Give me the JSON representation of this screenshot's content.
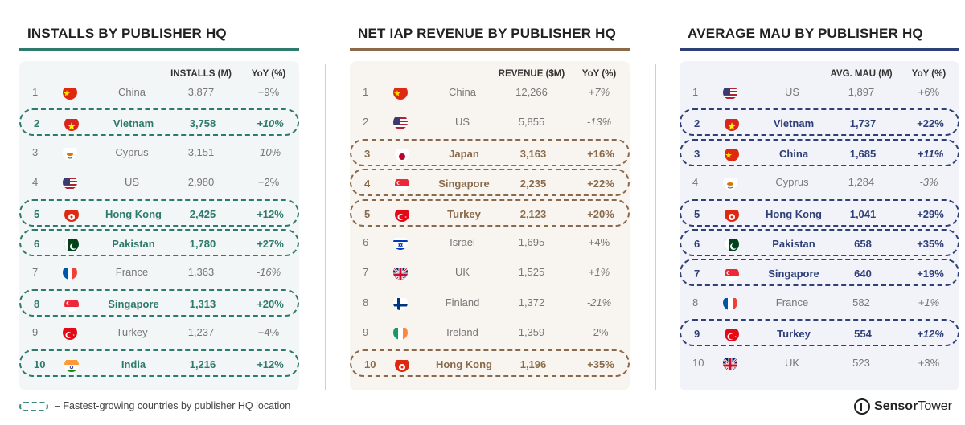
{
  "legend": {
    "text": "– Fastest-growing countries by publisher HQ location"
  },
  "brand": {
    "part1": "Sensor",
    "part2": "Tower"
  },
  "chart_data": [
    {
      "type": "table",
      "title": "INSTALLS BY PUBLISHER HQ",
      "accent": "#2e7a6c",
      "card_bg": "#f2f6f6",
      "value_header": "INSTALLS (M)",
      "yoy_header": "YoY (%)",
      "rows": [
        {
          "rank": "1",
          "flag": "cn",
          "country": "China",
          "value": "3,877",
          "yoy": "+9%",
          "hl": false,
          "it": false
        },
        {
          "rank": "2",
          "flag": "vn",
          "country": "Vietnam",
          "value": "3,758",
          "yoy": "+10%",
          "hl": true,
          "it": true
        },
        {
          "rank": "3",
          "flag": "cy",
          "country": "Cyprus",
          "value": "3,151",
          "yoy": "-10%",
          "hl": false,
          "it": true
        },
        {
          "rank": "4",
          "flag": "us",
          "country": "US",
          "value": "2,980",
          "yoy": "+2%",
          "hl": false,
          "it": false
        },
        {
          "rank": "5",
          "flag": "hk",
          "country": "Hong Kong",
          "value": "2,425",
          "yoy": "+12%",
          "hl": true,
          "it": false
        },
        {
          "rank": "6",
          "flag": "pk",
          "country": "Pakistan",
          "value": "1,780",
          "yoy": "+27%",
          "hl": true,
          "it": false
        },
        {
          "rank": "7",
          "flag": "fr",
          "country": "France",
          "value": "1,363",
          "yoy": "-16%",
          "hl": false,
          "it": true
        },
        {
          "rank": "8",
          "flag": "sg",
          "country": "Singapore",
          "value": "1,313",
          "yoy": "+20%",
          "hl": true,
          "it": false
        },
        {
          "rank": "9",
          "flag": "tr",
          "country": "Turkey",
          "value": "1,237",
          "yoy": "+4%",
          "hl": false,
          "it": false
        },
        {
          "rank": "10",
          "flag": "in",
          "country": "India",
          "value": "1,216",
          "yoy": "+12%",
          "hl": true,
          "it": false
        }
      ]
    },
    {
      "type": "table",
      "title": "NET IAP REVENUE BY PUBLISHER HQ",
      "accent": "#8a6a4a",
      "card_bg": "#f8f4ef",
      "value_header": "REVENUE ($M)",
      "yoy_header": "YoY (%)",
      "rows": [
        {
          "rank": "1",
          "flag": "cn",
          "country": "China",
          "value": "12,266",
          "yoy": "+7%",
          "hl": false,
          "it": true
        },
        {
          "rank": "2",
          "flag": "us",
          "country": "US",
          "value": "5,855",
          "yoy": "-13%",
          "hl": false,
          "it": true
        },
        {
          "rank": "3",
          "flag": "jp",
          "country": "Japan",
          "value": "3,163",
          "yoy": "+16%",
          "hl": true,
          "it": false
        },
        {
          "rank": "4",
          "flag": "sg",
          "country": "Singapore",
          "value": "2,235",
          "yoy": "+22%",
          "hl": true,
          "it": false
        },
        {
          "rank": "5",
          "flag": "tr",
          "country": "Turkey",
          "value": "2,123",
          "yoy": "+20%",
          "hl": true,
          "it": false
        },
        {
          "rank": "6",
          "flag": "il",
          "country": "Israel",
          "value": "1,695",
          "yoy": "+4%",
          "hl": false,
          "it": false
        },
        {
          "rank": "7",
          "flag": "uk",
          "country": "UK",
          "value": "1,525",
          "yoy": "+1%",
          "hl": false,
          "it": true
        },
        {
          "rank": "8",
          "flag": "fi",
          "country": "Finland",
          "value": "1,372",
          "yoy": "-21%",
          "hl": false,
          "it": true
        },
        {
          "rank": "9",
          "flag": "ie",
          "country": "Ireland",
          "value": "1,359",
          "yoy": "-2%",
          "hl": false,
          "it": false
        },
        {
          "rank": "10",
          "flag": "hk",
          "country": "Hong Kong",
          "value": "1,196",
          "yoy": "+35%",
          "hl": true,
          "it": false
        }
      ]
    },
    {
      "type": "table",
      "title": "AVERAGE MAU BY PUBLISHER HQ",
      "accent": "#2f3f78",
      "card_bg": "#f1f3f8",
      "value_header": "AVG. MAU (M)",
      "yoy_header": "YoY (%)",
      "rows": [
        {
          "rank": "1",
          "flag": "us",
          "country": "US",
          "value": "1,897",
          "yoy": "+6%",
          "hl": false,
          "it": false
        },
        {
          "rank": "2",
          "flag": "vn",
          "country": "Vietnam",
          "value": "1,737",
          "yoy": "+22%",
          "hl": true,
          "it": false
        },
        {
          "rank": "3",
          "flag": "cn",
          "country": "China",
          "value": "1,685",
          "yoy": "+11%",
          "hl": true,
          "it": true
        },
        {
          "rank": "4",
          "flag": "cy",
          "country": "Cyprus",
          "value": "1,284",
          "yoy": "-3%",
          "hl": false,
          "it": true
        },
        {
          "rank": "5",
          "flag": "hk",
          "country": "Hong Kong",
          "value": "1,041",
          "yoy": "+29%",
          "hl": true,
          "it": false
        },
        {
          "rank": "6",
          "flag": "pk",
          "country": "Pakistan",
          "value": "658",
          "yoy": "+35%",
          "hl": true,
          "it": false
        },
        {
          "rank": "7",
          "flag": "sg",
          "country": "Singapore",
          "value": "640",
          "yoy": "+19%",
          "hl": true,
          "it": false
        },
        {
          "rank": "8",
          "flag": "fr",
          "country": "France",
          "value": "582",
          "yoy": "+1%",
          "hl": false,
          "it": true
        },
        {
          "rank": "9",
          "flag": "tr",
          "country": "Turkey",
          "value": "554",
          "yoy": "+12%",
          "hl": true,
          "it": true
        },
        {
          "rank": "10",
          "flag": "uk",
          "country": "UK",
          "value": "523",
          "yoy": "+3%",
          "hl": false,
          "it": false
        }
      ]
    }
  ]
}
